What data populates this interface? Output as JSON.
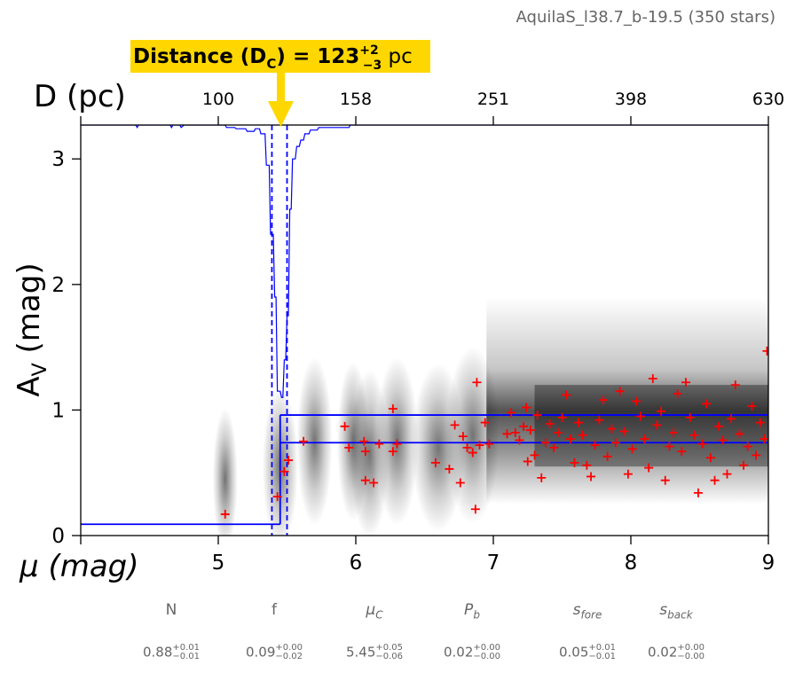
{
  "header": {
    "field_label": "AquilaS_l38.7_b-19.5 (350 stars)"
  },
  "annotation": {
    "prefix": "Distance (D",
    "sub": "C",
    "suffix": ") = 123",
    "sup_err": "+2",
    "sub_err": "−3",
    "unit": " pc",
    "bg_color": "#FFD700"
  },
  "chart_data": {
    "type": "scatter",
    "xlabel": "μ (mag)",
    "ylabel": "A",
    "ylabel_sub": "V",
    "ylabel_suffix": " (mag)",
    "top_axis_label": "D (pc)",
    "xlim": [
      4,
      9
    ],
    "ylim": [
      0,
      3.27
    ],
    "x_ticks": [
      5,
      6,
      7,
      8,
      9
    ],
    "y_ticks": [
      0,
      1,
      2,
      3
    ],
    "top_ticks": [
      {
        "mu": 5.0,
        "label": "100"
      },
      {
        "mu": 6.0,
        "label": "158"
      },
      {
        "mu": 7.0,
        "label": "251"
      },
      {
        "mu": 8.0,
        "label": "398"
      },
      {
        "mu": 9.0,
        "label": "630"
      }
    ],
    "model": {
      "mu_c": 5.45,
      "mu_c_lo": 5.39,
      "mu_c_hi": 5.5,
      "fore_av": 0.09,
      "back_av_low": 0.74,
      "back_av_high": 0.96,
      "color": "#0000ff"
    },
    "posterior_trace_color": "#0000ff",
    "stars_color": "#ff0000",
    "stars_plotted": [
      [
        5.05,
        0.17
      ],
      [
        5.43,
        0.31
      ],
      [
        5.48,
        0.51
      ],
      [
        5.51,
        0.6
      ],
      [
        5.62,
        0.75
      ],
      [
        5.92,
        0.87
      ],
      [
        5.95,
        0.7
      ],
      [
        6.06,
        0.75
      ],
      [
        6.07,
        0.44
      ],
      [
        6.07,
        0.67
      ],
      [
        6.13,
        0.42
      ],
      [
        6.17,
        0.73
      ],
      [
        6.27,
        1.01
      ],
      [
        6.27,
        0.67
      ],
      [
        6.3,
        0.73
      ],
      [
        6.58,
        0.58
      ],
      [
        6.68,
        0.53
      ],
      [
        6.72,
        0.88
      ],
      [
        6.76,
        0.42
      ],
      [
        6.78,
        0.79
      ],
      [
        6.81,
        0.7
      ],
      [
        6.85,
        0.66
      ],
      [
        6.87,
        0.21
      ],
      [
        6.88,
        1.22
      ],
      [
        6.9,
        0.72
      ],
      [
        6.94,
        0.9
      ],
      [
        6.97,
        0.73
      ],
      [
        7.1,
        0.81
      ],
      [
        7.13,
        0.98
      ],
      [
        7.16,
        0.82
      ],
      [
        7.19,
        0.76
      ],
      [
        7.22,
        0.87
      ],
      [
        7.24,
        1.02
      ],
      [
        7.25,
        0.59
      ],
      [
        7.27,
        0.84
      ],
      [
        7.3,
        0.64
      ],
      [
        7.32,
        0.96
      ],
      [
        7.35,
        0.46
      ],
      [
        7.38,
        0.74
      ],
      [
        7.41,
        0.89
      ],
      [
        7.44,
        0.7
      ],
      [
        7.47,
        0.82
      ],
      [
        7.5,
        0.94
      ],
      [
        7.53,
        1.12
      ],
      [
        7.56,
        0.77
      ],
      [
        7.59,
        0.58
      ],
      [
        7.62,
        0.9
      ],
      [
        7.65,
        0.8
      ],
      [
        7.68,
        0.56
      ],
      [
        7.71,
        0.47
      ],
      [
        7.74,
        0.72
      ],
      [
        7.77,
        0.92
      ],
      [
        7.8,
        1.08
      ],
      [
        7.83,
        0.63
      ],
      [
        7.86,
        0.85
      ],
      [
        7.89,
        0.74
      ],
      [
        7.92,
        1.15
      ],
      [
        7.95,
        0.83
      ],
      [
        7.98,
        0.49
      ],
      [
        8.01,
        0.69
      ],
      [
        8.04,
        1.07
      ],
      [
        8.07,
        0.95
      ],
      [
        8.1,
        0.77
      ],
      [
        8.13,
        0.54
      ],
      [
        8.16,
        1.25
      ],
      [
        8.19,
        0.88
      ],
      [
        8.22,
        0.99
      ],
      [
        8.25,
        0.44
      ],
      [
        8.28,
        0.71
      ],
      [
        8.31,
        0.82
      ],
      [
        8.34,
        1.13
      ],
      [
        8.37,
        0.67
      ],
      [
        8.4,
        1.22
      ],
      [
        8.43,
        0.94
      ],
      [
        8.46,
        0.8
      ],
      [
        8.49,
        0.34
      ],
      [
        8.52,
        0.73
      ],
      [
        8.55,
        1.05
      ],
      [
        8.58,
        0.62
      ],
      [
        8.61,
        0.44
      ],
      [
        8.64,
        0.87
      ],
      [
        8.67,
        0.76
      ],
      [
        8.7,
        0.49
      ],
      [
        8.73,
        0.93
      ],
      [
        8.76,
        1.2
      ],
      [
        8.79,
        0.81
      ],
      [
        8.82,
        0.56
      ],
      [
        8.85,
        0.71
      ],
      [
        8.88,
        1.03
      ],
      [
        8.91,
        0.64
      ],
      [
        8.94,
        0.9
      ],
      [
        8.97,
        0.77
      ],
      [
        8.99,
        1.47
      ]
    ]
  },
  "params": [
    {
      "name": "N",
      "val": "0.88",
      "up": "+0.01",
      "lo": "−0.01"
    },
    {
      "name": "f",
      "val": "0.09",
      "up": "+0.00",
      "lo": "−0.02"
    },
    {
      "name": "μ",
      "sub": "C",
      "val": "5.45",
      "up": "+0.05",
      "lo": "−0.06"
    },
    {
      "name": "P",
      "sub": "b",
      "val": "0.02",
      "up": "+0.00",
      "lo": "−0.00"
    },
    {
      "name": "s",
      "sub": "fore",
      "val": "0.05",
      "up": "+0.01",
      "lo": "−0.01"
    },
    {
      "name": "s",
      "sub": "back",
      "val": "0.02",
      "up": "+0.00",
      "lo": "−0.00"
    }
  ]
}
